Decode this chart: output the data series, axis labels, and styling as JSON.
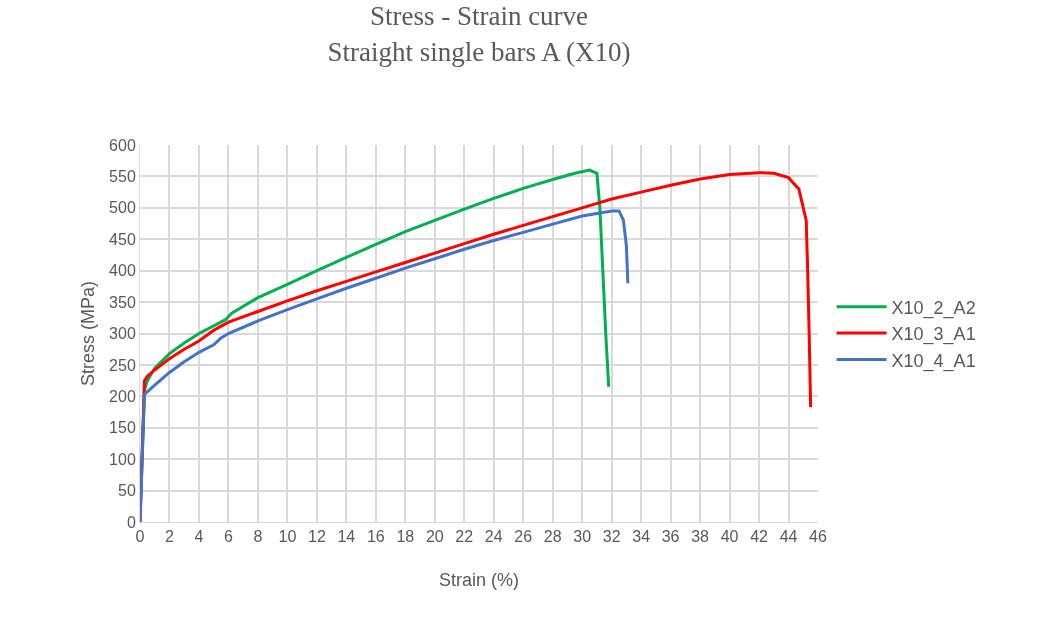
{
  "chart_data": {
    "type": "line",
    "title": "Stress - Strain curve\nStraight single bars A (X10)",
    "xlabel": "Strain (%)",
    "ylabel": "Stress (MPa)",
    "xlim": [
      0,
      46
    ],
    "xticks": [
      0,
      2,
      4,
      6,
      8,
      10,
      12,
      14,
      16,
      18,
      20,
      22,
      24,
      26,
      28,
      30,
      32,
      34,
      36,
      38,
      40,
      42,
      44,
      46
    ],
    "ylim": [
      0,
      600
    ],
    "yticks": [
      0,
      50,
      100,
      150,
      200,
      250,
      300,
      350,
      400,
      450,
      500,
      550,
      600
    ],
    "grid": true,
    "legend": "right",
    "marker": "none",
    "line_style": "solid",
    "series": [
      {
        "name": "X10_2_A2",
        "color": "#00b050",
        "x": [
          0,
          0.3,
          0.5,
          1,
          2,
          3,
          4,
          5,
          5.8,
          6.2,
          8,
          10,
          12,
          14,
          16,
          18,
          20,
          22,
          24,
          26,
          28,
          29.5,
          30.5,
          31,
          31.2,
          31.4,
          31.6,
          31.8
        ],
        "values": [
          0,
          210,
          225,
          245,
          268,
          285,
          300,
          312,
          322,
          332,
          357,
          378,
          400,
          421,
          442,
          462,
          480,
          498,
          515,
          531,
          545,
          555,
          560,
          555,
          500,
          400,
          300,
          215
        ]
      },
      {
        "name": "X10_3_A1",
        "color": "#ff0000",
        "x": [
          0,
          0.3,
          0.5,
          1,
          2,
          3,
          4,
          5,
          6,
          8,
          10,
          12,
          14,
          16,
          18,
          20,
          22,
          24,
          26,
          28,
          30,
          32,
          34,
          36,
          38,
          40,
          42,
          43,
          44,
          44.7,
          45.2,
          45.3,
          45.4,
          45.5
        ],
        "values": [
          0,
          225,
          232,
          242,
          260,
          275,
          288,
          305,
          318,
          335,
          352,
          368,
          383,
          398,
          413,
          428,
          443,
          458,
          472,
          486,
          500,
          514,
          525,
          536,
          546,
          553,
          556,
          555,
          548,
          530,
          480,
          400,
          300,
          183
        ]
      },
      {
        "name": "X10_4_A1",
        "color": "#4472c4",
        "x": [
          0,
          0.3,
          1,
          2,
          3,
          4,
          5,
          5.5,
          6,
          8,
          10,
          12,
          14,
          16,
          18,
          20,
          22,
          24,
          26,
          28,
          30,
          32,
          32.5,
          32.8,
          33,
          33.1
        ],
        "values": [
          0,
          203,
          218,
          238,
          255,
          270,
          282,
          293,
          300,
          320,
          338,
          355,
          372,
          388,
          404,
          419,
          434,
          448,
          461,
          474,
          487,
          495,
          495,
          480,
          440,
          380
        ]
      }
    ]
  }
}
